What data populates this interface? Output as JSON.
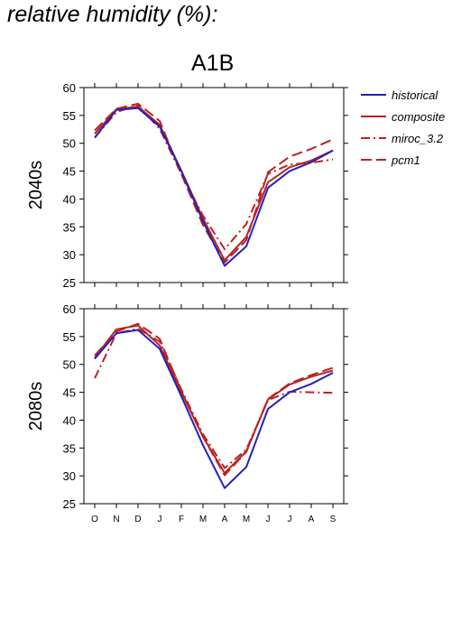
{
  "heading": "relative humidity (%):",
  "scenario": "A1B",
  "colors": {
    "historical": "#2222bb",
    "models": "#bb2222",
    "axis": "#000000"
  },
  "legend": [
    {
      "label": "historical",
      "style": "solid",
      "color": "#2222bb"
    },
    {
      "label": "composite",
      "style": "solid",
      "color": "#bb2222"
    },
    {
      "label": "miroc_3.2",
      "style": "dashdot",
      "color": "#bb2222"
    },
    {
      "label": "pcm1",
      "style": "dashed",
      "color": "#bb2222"
    }
  ],
  "chart_data": [
    {
      "type": "line",
      "row_label": "2040s",
      "categories": [
        "O",
        "N",
        "D",
        "J",
        "F",
        "M",
        "A",
        "M",
        "J",
        "J",
        "A",
        "S"
      ],
      "ylim": [
        25,
        60
      ],
      "yticks": [
        25,
        30,
        35,
        40,
        45,
        50,
        55,
        60
      ],
      "series": [
        {
          "name": "historical",
          "style": "solid",
          "values": [
            51,
            56,
            56.3,
            53,
            45,
            36,
            28,
            31.5,
            42,
            45,
            46.6,
            48.7
          ]
        },
        {
          "name": "composite",
          "style": "solid",
          "values": [
            51.7,
            56.1,
            56.6,
            53.3,
            45.1,
            36.5,
            29,
            33.2,
            43,
            45.7,
            46.9,
            48.7
          ]
        },
        {
          "name": "miroc_3.2",
          "style": "dashdot",
          "values": [
            51,
            55.6,
            56.8,
            52.6,
            44.5,
            37,
            31,
            35.5,
            44.5,
            46.2,
            46.5,
            47.1
          ]
        },
        {
          "name": "pcm1",
          "style": "dashed",
          "values": [
            52.3,
            56.2,
            57.1,
            54,
            44.5,
            35.3,
            28.6,
            32.6,
            44.8,
            47.6,
            49,
            50.7
          ]
        }
      ]
    },
    {
      "type": "line",
      "row_label": "2080s",
      "categories": [
        "O",
        "N",
        "D",
        "J",
        "F",
        "M",
        "A",
        "M",
        "J",
        "J",
        "A",
        "S"
      ],
      "ylim": [
        25,
        60
      ],
      "yticks": [
        25,
        30,
        35,
        40,
        45,
        50,
        55,
        60
      ],
      "series": [
        {
          "name": "historical",
          "style": "solid",
          "values": [
            51,
            55.6,
            56.2,
            52.8,
            44.3,
            35.5,
            27.8,
            31.6,
            42,
            45,
            46.5,
            48.5
          ]
        },
        {
          "name": "composite",
          "style": "solid",
          "values": [
            51.2,
            56.3,
            57,
            53.4,
            45,
            37,
            30.5,
            34.4,
            43.7,
            46.4,
            47.8,
            48.9
          ]
        },
        {
          "name": "miroc_3.2",
          "style": "dashdot",
          "values": [
            47.5,
            55.6,
            56.4,
            54.1,
            45.5,
            37.5,
            31.4,
            34.7,
            43.6,
            45.1,
            45,
            44.9
          ]
        },
        {
          "name": "pcm1",
          "style": "dashed",
          "values": [
            51.6,
            55.9,
            57.3,
            54.6,
            45.2,
            37,
            30.1,
            34.3,
            43.8,
            46.6,
            48.1,
            49.4
          ]
        }
      ]
    }
  ]
}
